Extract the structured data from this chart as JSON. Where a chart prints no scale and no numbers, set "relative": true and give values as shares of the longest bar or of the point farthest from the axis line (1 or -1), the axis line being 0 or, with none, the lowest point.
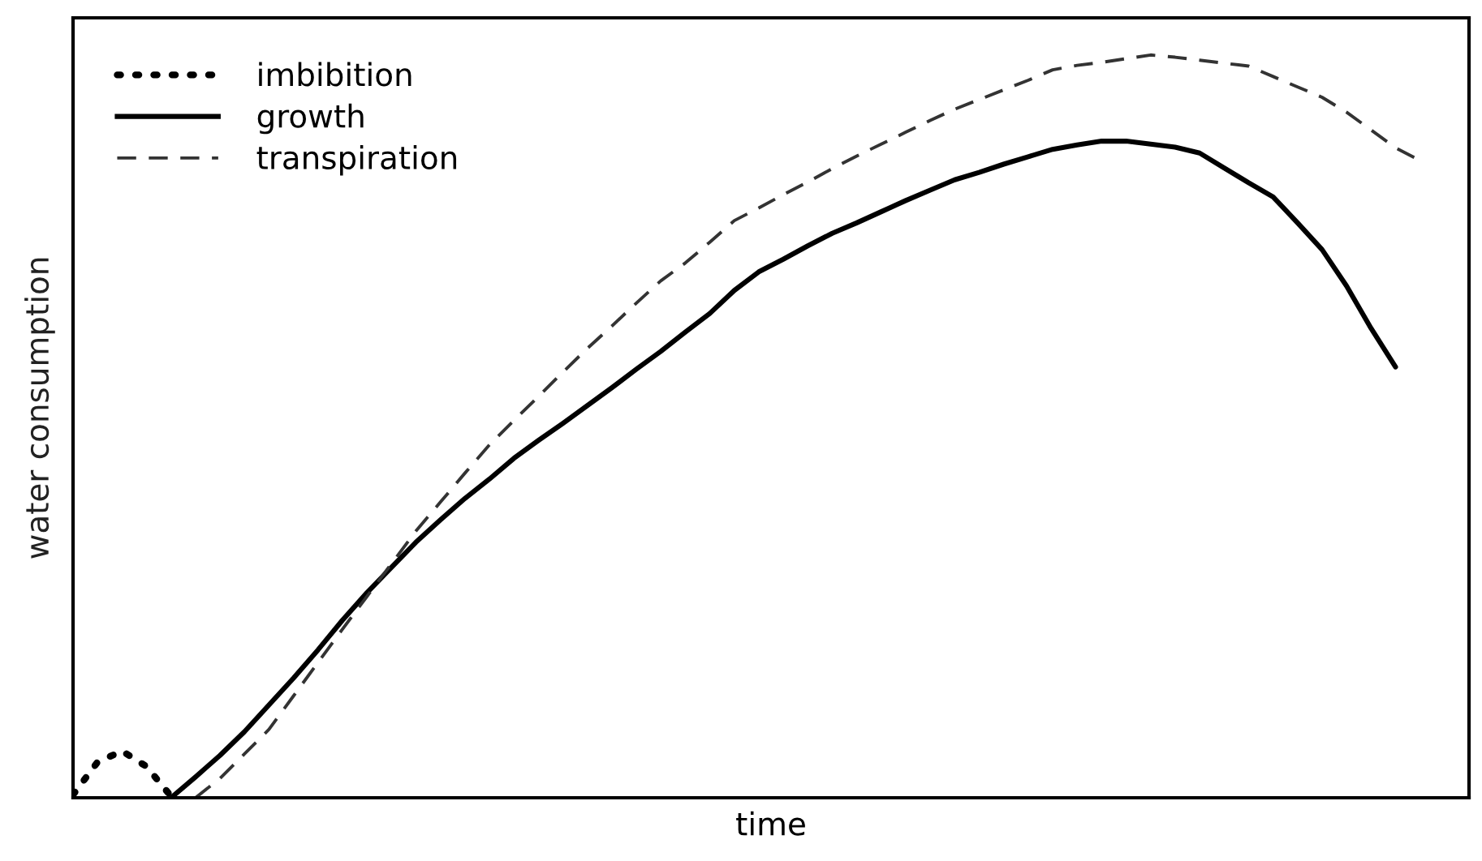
{
  "chart_data": {
    "type": "line",
    "relative": true,
    "xlabel": "time",
    "ylabel": "water consumption",
    "categories": [
      null,
      null,
      null,
      null,
      null,
      null,
      null,
      null,
      null,
      null,
      null,
      null,
      null,
      null,
      null,
      null,
      null,
      null,
      null,
      null,
      null,
      null,
      null,
      null,
      null,
      null,
      null,
      null,
      null,
      null,
      null,
      null,
      null,
      null,
      null,
      null,
      null,
      null,
      null,
      null,
      null,
      null,
      null,
      null,
      null,
      null,
      null,
      null,
      null,
      null,
      null,
      null,
      null,
      null,
      null,
      null,
      null,
      null
    ],
    "legend": "top left",
    "marker": "none",
    "series": [
      {
        "name": "imbibition",
        "color": "#000000",
        "line_style": "dotted",
        "values": [
          0.004,
          0.048,
          0.063,
          0.042,
          0.002,
          null,
          null,
          null,
          null,
          null,
          null,
          null,
          null,
          null,
          null,
          null,
          null,
          null,
          null,
          null,
          null,
          null,
          null,
          null,
          null,
          null,
          null,
          null,
          null,
          null,
          null,
          null,
          null,
          null,
          null,
          null,
          null,
          null,
          null,
          null,
          null,
          null,
          null,
          null,
          null,
          null,
          null,
          null,
          null,
          null,
          null,
          null,
          null,
          null,
          null,
          null,
          null,
          null
        ]
      },
      {
        "name": "growth",
        "color": "#000000",
        "line_style": "solid",
        "values": [
          null,
          null,
          null,
          null,
          0,
          0.028,
          0.057,
          0.089,
          0.125,
          0.161,
          0.199,
          0.239,
          0.276,
          0.31,
          0.344,
          0.374,
          0.403,
          0.429,
          0.457,
          0.481,
          0.504,
          0.528,
          0.552,
          0.577,
          0.601,
          0.627,
          0.652,
          0.683,
          0.708,
          0.725,
          0.743,
          0.76,
          0.774,
          0.789,
          0.804,
          0.818,
          0.832,
          0.842,
          0.853,
          0.863,
          0.873,
          0.879,
          0.884,
          0.884,
          0.88,
          0.876,
          0.868,
          0.848,
          0.828,
          0.809,
          0.774,
          0.738,
          0.689,
          0.632,
          0.58,
          null,
          null,
          null
        ]
      },
      {
        "name": "transpiration",
        "color": "#333333",
        "line_style": "dashed",
        "values": [
          null,
          null,
          null,
          null,
          null,
          0,
          0.026,
          0.059,
          0.092,
          0.137,
          0.182,
          0.227,
          0.271,
          0.315,
          0.359,
          0.398,
          0.437,
          0.475,
          0.508,
          0.54,
          0.573,
          0.605,
          0.635,
          0.666,
          0.696,
          0.72,
          0.748,
          0.777,
          0.794,
          0.812,
          0.829,
          0.847,
          0.864,
          0.88,
          0.896,
          0.912,
          0.927,
          0.94,
          0.953,
          0.966,
          0.98,
          0.986,
          0.99,
          0.995,
          1,
          0.997,
          0.993,
          0.989,
          0.985,
          0.971,
          0.957,
          0.943,
          0.923,
          0.899,
          0.875,
          0.858,
          null,
          null
        ]
      }
    ]
  }
}
